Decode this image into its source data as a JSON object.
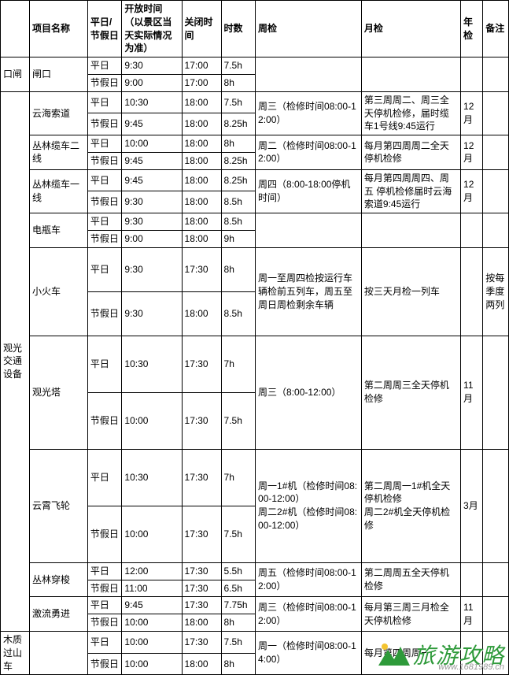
{
  "columns": {
    "category": "",
    "name": "项目名称",
    "daytype": "平日/节假日",
    "open": "开放时间（以景区当天实际情况为准）",
    "close": "关闭时间",
    "duration": "时数",
    "weekly": "周检",
    "monthly": "月检",
    "yearly": "年检",
    "note": "备注"
  },
  "watermark": {
    "main": "旅游攻略",
    "url": "www.1681989.cn"
  },
  "groups": [
    {
      "category": "口闸",
      "items": [
        {
          "name": "闸口",
          "weekly": "",
          "monthly": "",
          "yearly": "",
          "note": "",
          "rows": [
            {
              "daytype": "平日",
              "open": "9:30",
              "close": "17:00",
              "dur": "7.5h"
            },
            {
              "daytype": "节假日",
              "open": "9:00",
              "close": "17:00",
              "dur": "8h"
            }
          ]
        }
      ]
    },
    {
      "category": "观光交通设备",
      "items": [
        {
          "name": "云海索道",
          "weekly": "周三（检修时间08:00-12:00）",
          "monthly": "第三周周二、周三全天停机检修，届时缆车1号线9:45运行",
          "yearly": "12月",
          "note": "",
          "rows": [
            {
              "daytype": "平日",
              "open": "10:30",
              "close": "18:00",
              "dur": "7.5h"
            },
            {
              "daytype": "节假日",
              "open": "9:45",
              "close": "18:00",
              "dur": "8.25h"
            }
          ]
        },
        {
          "name": "丛林缆车二线",
          "weekly": "周二（检修时间08:00-12:00）",
          "monthly": "每月第四周周二全天停机检修",
          "yearly": "12月",
          "note": "",
          "rows": [
            {
              "daytype": "平日",
              "open": "10:00",
              "close": "18:00",
              "dur": "8h"
            },
            {
              "daytype": "节假日",
              "open": "9:45",
              "close": "18:00",
              "dur": "8.25h"
            }
          ]
        },
        {
          "name": "丛林缆车一线",
          "weekly": "周四（8:00-18:00停机时间）",
          "monthly": "每月第四周周四、周五 停机检修届时云海索道9:45运行",
          "yearly": "12月",
          "note": "",
          "rows": [
            {
              "daytype": "平日",
              "open": "9:45",
              "close": "18:00",
              "dur": "8.25h"
            },
            {
              "daytype": "节假日",
              "open": "9:30",
              "close": "18:00",
              "dur": "8.5h"
            }
          ]
        },
        {
          "name": "电瓶车",
          "weekly": "",
          "monthly": "",
          "yearly": "",
          "note": "",
          "rows": [
            {
              "daytype": "平日",
              "open": "9:30",
              "close": "18:00",
              "dur": "8.5h"
            },
            {
              "daytype": "节假日",
              "open": "9:00",
              "close": "18:00",
              "dur": "9h"
            }
          ]
        },
        {
          "name": "小火车",
          "weekly": "周一至周四检按运行车辆检前五列车，周五至周日周检剩余车辆",
          "monthly": "按三天月检一列车",
          "yearly": "",
          "note": "按每季度两列",
          "rows": [
            {
              "daytype": "平日",
              "open": "9:30",
              "close": "17:30",
              "dur": "8h",
              "tall": true
            },
            {
              "daytype": "节假日",
              "open": "9:30",
              "close": "18:00",
              "dur": "8.5h",
              "tall": true
            }
          ]
        },
        {
          "name": "观光塔",
          "weekly": "周三（8:00-12:00）",
          "monthly": "第二周周三全天停机检修",
          "yearly": "11月",
          "note": "",
          "rows": [
            {
              "daytype": "平日",
              "open": "10:30",
              "close": "17:30",
              "dur": "7h",
              "vtall": true
            },
            {
              "daytype": "节假日",
              "open": "10:00",
              "close": "17:30",
              "dur": "7.5h",
              "vtall": true
            }
          ]
        },
        {
          "name": "云霄飞轮",
          "weekly": "周一1#机（检修时间08:00-12:00）\n周二2#机（检修时间08:00-12:00）",
          "monthly": "第二周周一1#机全天停机检修\n周二2#机全天停机检修",
          "yearly": "3月",
          "note": "",
          "rows": [
            {
              "daytype": "平日",
              "open": "10:30",
              "close": "17:30",
              "dur": "7h",
              "vtall": true
            },
            {
              "daytype": "节假日",
              "open": "10:00",
              "close": "17:30",
              "dur": "7.5h",
              "vtall": true
            }
          ]
        },
        {
          "name": "丛林穿梭",
          "weekly": "周五（检修时间08:00-12:00）",
          "monthly": "第二周周五全天停机检修",
          "yearly": "",
          "note": "",
          "rows": [
            {
              "daytype": "平日",
              "open": "12:00",
              "close": "17:30",
              "dur": "5.5h"
            },
            {
              "daytype": "节假日",
              "open": "11:00",
              "close": "17:30",
              "dur": "6.5h"
            }
          ]
        },
        {
          "name": "激流勇进",
          "weekly": "周三（检修时间08:00-12:00）",
          "monthly": "每月第三周三月检全天停机检修",
          "yearly": "11月",
          "note": "",
          "rows": [
            {
              "daytype": "平日",
              "open": "9:45",
              "close": "17:30",
              "dur": "7.75h"
            },
            {
              "daytype": "节假日",
              "open": "10:00",
              "close": "18:00",
              "dur": "8h"
            }
          ]
        }
      ]
    },
    {
      "category": "木质过山车",
      "items": [
        {
          "name": "",
          "weekly": "周一（检修时间08:00-14:00）",
          "monthly": "每月第四周周一",
          "yearly": "",
          "note": "",
          "rows": [
            {
              "daytype": "平日",
              "open": "10:00",
              "close": "17:30",
              "dur": "7.5h"
            },
            {
              "daytype": "节假日",
              "open": "10:00",
              "close": "18:00",
              "dur": "8h"
            }
          ]
        }
      ]
    }
  ]
}
